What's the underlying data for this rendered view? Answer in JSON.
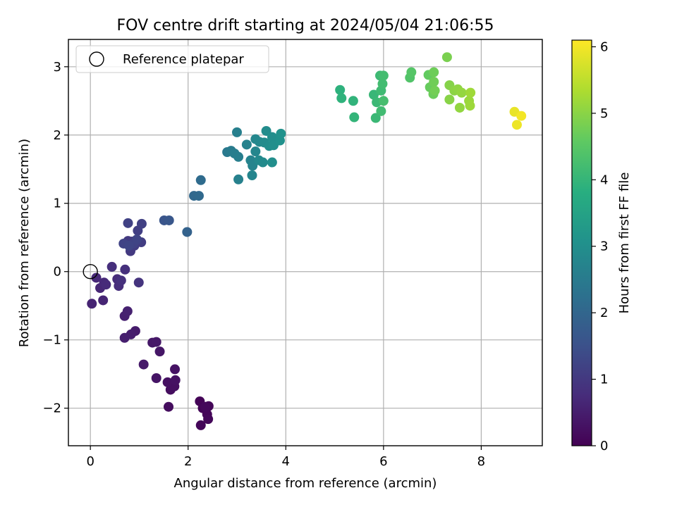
{
  "chart_data": {
    "type": "scatter",
    "title": "FOV centre drift starting at 2024/05/04 21:06:55",
    "xlabel": "Angular distance from reference (arcmin)",
    "ylabel": "Rotation from reference (arcmin)",
    "xlim": [
      -0.45,
      9.25
    ],
    "ylim": [
      -2.55,
      3.4
    ],
    "xticks": [
      0,
      2,
      4,
      6,
      8
    ],
    "xtick_labels": [
      "0",
      "2",
      "4",
      "6",
      "8"
    ],
    "yticks": [
      -2,
      -1,
      0,
      1,
      2,
      3
    ],
    "ytick_labels": [
      "−2",
      "−1",
      "0",
      "1",
      "2",
      "3"
    ],
    "grid": true,
    "legend": {
      "position": "top-left",
      "entries": [
        {
          "label": "Reference platepar",
          "marker": "open-circle",
          "x": 0,
          "y": 0
        }
      ]
    },
    "colorbar": {
      "label": "Hours from first FF file",
      "range": [
        0,
        6.1
      ],
      "ticks": [
        0,
        1,
        2,
        3,
        4,
        5,
        6
      ],
      "tick_labels": [
        "0",
        "1",
        "2",
        "3",
        "4",
        "5",
        "6"
      ],
      "colormap": "viridis"
    },
    "points": [
      {
        "x": 2.24,
        "y": -1.9,
        "c": 0.05
      },
      {
        "x": 2.3,
        "y": -2.0,
        "c": 0.06
      },
      {
        "x": 2.39,
        "y": -2.09,
        "c": 0.07
      },
      {
        "x": 2.42,
        "y": -1.97,
        "c": 0.08
      },
      {
        "x": 2.26,
        "y": -2.25,
        "c": 0.09
      },
      {
        "x": 2.41,
        "y": -2.16,
        "c": 0.1
      },
      {
        "x": 2.35,
        "y": -1.98,
        "c": 0.12
      },
      {
        "x": 1.6,
        "y": -1.98,
        "c": 0.2
      },
      {
        "x": 1.64,
        "y": -1.73,
        "c": 0.22
      },
      {
        "x": 1.72,
        "y": -1.68,
        "c": 0.24
      },
      {
        "x": 1.58,
        "y": -1.62,
        "c": 0.26
      },
      {
        "x": 1.74,
        "y": -1.59,
        "c": 0.28
      },
      {
        "x": 1.73,
        "y": -1.43,
        "c": 0.3
      },
      {
        "x": 1.35,
        "y": -1.56,
        "c": 0.33
      },
      {
        "x": 1.42,
        "y": -1.17,
        "c": 0.36
      },
      {
        "x": 1.27,
        "y": -1.04,
        "c": 0.38
      },
      {
        "x": 1.35,
        "y": -1.03,
        "c": 0.4
      },
      {
        "x": 1.09,
        "y": -1.36,
        "c": 0.42
      },
      {
        "x": 0.92,
        "y": -0.87,
        "c": 0.45
      },
      {
        "x": 0.83,
        "y": -0.92,
        "c": 0.48
      },
      {
        "x": 0.7,
        "y": -0.97,
        "c": 0.5
      },
      {
        "x": 0.7,
        "y": -0.65,
        "c": 0.52
      },
      {
        "x": 0.76,
        "y": -0.58,
        "c": 0.55
      },
      {
        "x": 0.03,
        "y": -0.47,
        "c": 0.6
      },
      {
        "x": 0.26,
        "y": -0.42,
        "c": 0.62
      },
      {
        "x": 0.2,
        "y": -0.24,
        "c": 0.65
      },
      {
        "x": 0.12,
        "y": -0.09,
        "c": 0.68
      },
      {
        "x": 0.28,
        "y": -0.16,
        "c": 0.7
      },
      {
        "x": 0.32,
        "y": -0.19,
        "c": 0.72
      },
      {
        "x": 0.55,
        "y": -0.11,
        "c": 0.75
      },
      {
        "x": 0.58,
        "y": -0.21,
        "c": 0.78
      },
      {
        "x": 0.44,
        "y": 0.07,
        "c": 0.8
      },
      {
        "x": 0.71,
        "y": 0.03,
        "c": 0.82
      },
      {
        "x": 0.63,
        "y": -0.13,
        "c": 0.85
      },
      {
        "x": 0.99,
        "y": -0.16,
        "c": 0.9
      },
      {
        "x": 0.82,
        "y": 0.3,
        "c": 1.0
      },
      {
        "x": 0.77,
        "y": 0.45,
        "c": 1.02
      },
      {
        "x": 0.85,
        "y": 0.44,
        "c": 1.05
      },
      {
        "x": 0.9,
        "y": 0.38,
        "c": 1.08
      },
      {
        "x": 1.04,
        "y": 0.43,
        "c": 1.1
      },
      {
        "x": 0.97,
        "y": 0.6,
        "c": 1.12
      },
      {
        "x": 1.05,
        "y": 0.7,
        "c": 1.15
      },
      {
        "x": 0.77,
        "y": 0.71,
        "c": 1.18
      },
      {
        "x": 0.88,
        "y": 0.41,
        "c": 1.2
      },
      {
        "x": 0.68,
        "y": 0.41,
        "c": 1.22
      },
      {
        "x": 0.95,
        "y": 0.47,
        "c": 1.24
      },
      {
        "x": 0.79,
        "y": 0.38,
        "c": 1.26
      },
      {
        "x": 1.51,
        "y": 0.75,
        "c": 1.6
      },
      {
        "x": 1.61,
        "y": 0.75,
        "c": 1.65
      },
      {
        "x": 1.98,
        "y": 0.58,
        "c": 1.9
      },
      {
        "x": 2.12,
        "y": 1.11,
        "c": 2.05
      },
      {
        "x": 2.22,
        "y": 1.11,
        "c": 2.08
      },
      {
        "x": 2.26,
        "y": 1.34,
        "c": 2.12
      },
      {
        "x": 2.8,
        "y": 1.75,
        "c": 2.45
      },
      {
        "x": 2.88,
        "y": 1.77,
        "c": 2.5
      },
      {
        "x": 2.95,
        "y": 1.73,
        "c": 2.55
      },
      {
        "x": 3.03,
        "y": 1.68,
        "c": 2.58
      },
      {
        "x": 3.0,
        "y": 2.04,
        "c": 2.6
      },
      {
        "x": 3.03,
        "y": 1.35,
        "c": 2.65
      },
      {
        "x": 3.2,
        "y": 1.86,
        "c": 2.68
      },
      {
        "x": 3.28,
        "y": 1.63,
        "c": 2.7
      },
      {
        "x": 3.32,
        "y": 1.55,
        "c": 2.72
      },
      {
        "x": 3.31,
        "y": 1.41,
        "c": 2.75
      },
      {
        "x": 3.38,
        "y": 1.76,
        "c": 2.78
      },
      {
        "x": 3.38,
        "y": 1.94,
        "c": 2.8
      },
      {
        "x": 3.46,
        "y": 1.9,
        "c": 2.82
      },
      {
        "x": 3.45,
        "y": 1.63,
        "c": 2.85
      },
      {
        "x": 3.53,
        "y": 1.6,
        "c": 2.88
      },
      {
        "x": 3.56,
        "y": 1.89,
        "c": 2.9
      },
      {
        "x": 3.6,
        "y": 2.06,
        "c": 2.92
      },
      {
        "x": 3.66,
        "y": 1.84,
        "c": 2.95
      },
      {
        "x": 3.72,
        "y": 1.97,
        "c": 2.97
      },
      {
        "x": 3.72,
        "y": 1.6,
        "c": 2.98
      },
      {
        "x": 3.75,
        "y": 1.85,
        "c": 3.0
      },
      {
        "x": 3.88,
        "y": 1.92,
        "c": 3.05
      },
      {
        "x": 3.9,
        "y": 2.02,
        "c": 3.08
      },
      {
        "x": 5.11,
        "y": 2.66,
        "c": 3.9
      },
      {
        "x": 5.14,
        "y": 2.54,
        "c": 3.92
      },
      {
        "x": 5.38,
        "y": 2.5,
        "c": 3.95
      },
      {
        "x": 5.4,
        "y": 2.26,
        "c": 3.98
      },
      {
        "x": 5.8,
        "y": 2.59,
        "c": 4.05
      },
      {
        "x": 5.84,
        "y": 2.25,
        "c": 4.08
      },
      {
        "x": 5.86,
        "y": 2.48,
        "c": 4.1
      },
      {
        "x": 5.93,
        "y": 2.87,
        "c": 4.12
      },
      {
        "x": 5.95,
        "y": 2.65,
        "c": 4.15
      },
      {
        "x": 5.95,
        "y": 2.35,
        "c": 4.18
      },
      {
        "x": 5.98,
        "y": 2.75,
        "c": 4.2
      },
      {
        "x": 6.0,
        "y": 2.87,
        "c": 4.22
      },
      {
        "x": 6.0,
        "y": 2.5,
        "c": 4.25
      },
      {
        "x": 6.54,
        "y": 2.84,
        "c": 4.4
      },
      {
        "x": 6.57,
        "y": 2.92,
        "c": 4.45
      },
      {
        "x": 6.92,
        "y": 2.88,
        "c": 4.6
      },
      {
        "x": 6.95,
        "y": 2.7,
        "c": 4.65
      },
      {
        "x": 7.02,
        "y": 2.6,
        "c": 4.7
      },
      {
        "x": 7.03,
        "y": 2.92,
        "c": 4.72
      },
      {
        "x": 7.03,
        "y": 2.78,
        "c": 4.75
      },
      {
        "x": 7.05,
        "y": 2.65,
        "c": 4.78
      },
      {
        "x": 7.3,
        "y": 3.14,
        "c": 4.85
      },
      {
        "x": 7.35,
        "y": 2.73,
        "c": 4.95
      },
      {
        "x": 7.35,
        "y": 2.52,
        "c": 4.98
      },
      {
        "x": 7.45,
        "y": 2.65,
        "c": 5.02
      },
      {
        "x": 7.52,
        "y": 2.67,
        "c": 5.05
      },
      {
        "x": 7.56,
        "y": 2.4,
        "c": 5.08
      },
      {
        "x": 7.6,
        "y": 2.62,
        "c": 5.1
      },
      {
        "x": 7.75,
        "y": 2.5,
        "c": 5.15
      },
      {
        "x": 7.77,
        "y": 2.43,
        "c": 5.18
      },
      {
        "x": 7.78,
        "y": 2.62,
        "c": 5.2
      },
      {
        "x": 8.68,
        "y": 2.34,
        "c": 5.9
      },
      {
        "x": 8.73,
        "y": 2.15,
        "c": 5.95
      },
      {
        "x": 8.82,
        "y": 2.28,
        "c": 6.0
      }
    ]
  }
}
